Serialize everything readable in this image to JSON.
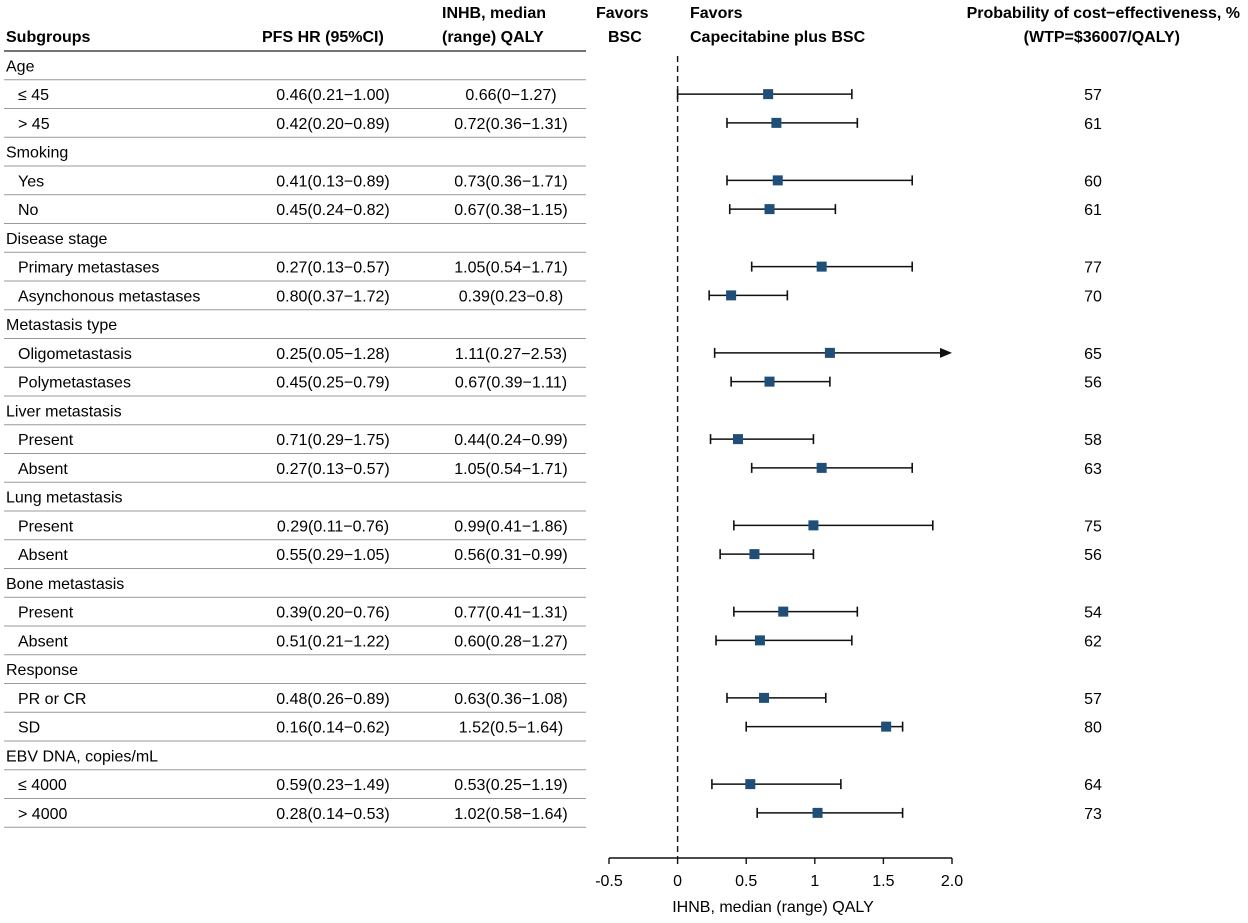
{
  "headers": {
    "subgroups": "Subgroups",
    "pfs_hr": "PFS HR (95%CI)",
    "inhb_line1": "INHB, median",
    "inhb_line2": "(range) QALY",
    "favors_bsc_line1": "Favors",
    "favors_bsc_line2": "BSC",
    "favors_cap_line1": "Favors",
    "favors_cap_line2": "Capecitabine plus BSC",
    "prob_line1": "Probability of cost−effectiveness, %",
    "prob_line2": "(WTP=$36007/QALY)"
  },
  "rows": [
    {
      "kind": "group",
      "label": "Age"
    },
    {
      "kind": "item",
      "label": "≤ 45",
      "hr": "0.46(0.21−1.00)",
      "inhb": "0.66(0−1.27)",
      "prob": "57"
    },
    {
      "kind": "item",
      "label": "> 45",
      "hr": "0.42(0.20−0.89)",
      "inhb": "0.72(0.36−1.31)",
      "prob": "61"
    },
    {
      "kind": "group",
      "label": "Smoking"
    },
    {
      "kind": "item",
      "label": "Yes",
      "hr": "0.41(0.13−0.89)",
      "inhb": "0.73(0.36−1.71)",
      "prob": "60"
    },
    {
      "kind": "item",
      "label": "No",
      "hr": "0.45(0.24−0.82)",
      "inhb": "0.67(0.38−1.15)",
      "prob": "61"
    },
    {
      "kind": "group",
      "label": "Disease stage"
    },
    {
      "kind": "item",
      "label": "Primary metastases",
      "hr": "0.27(0.13−0.57)",
      "inhb": "1.05(0.54−1.71)",
      "prob": "77"
    },
    {
      "kind": "item",
      "label": "Asynchonous metastases",
      "hr": "0.80(0.37−1.72)",
      "inhb": "0.39(0.23−0.8)",
      "prob": "70"
    },
    {
      "kind": "group",
      "label": "Metastasis type"
    },
    {
      "kind": "item",
      "label": "Oligometastasis",
      "hr": "0.25(0.05−1.28)",
      "inhb": "1.11(0.27−2.53)",
      "prob": "65"
    },
    {
      "kind": "item",
      "label": "Polymetastases",
      "hr": "0.45(0.25−0.79)",
      "inhb": "0.67(0.39−1.11)",
      "prob": "56"
    },
    {
      "kind": "group",
      "label": "Liver metastasis"
    },
    {
      "kind": "item",
      "label": "Present",
      "hr": "0.71(0.29−1.75)",
      "inhb": "0.44(0.24−0.99)",
      "prob": "58"
    },
    {
      "kind": "item",
      "label": "Absent",
      "hr": "0.27(0.13−0.57)",
      "inhb": "1.05(0.54−1.71)",
      "prob": "63"
    },
    {
      "kind": "group",
      "label": "Lung metastasis"
    },
    {
      "kind": "item",
      "label": "Present",
      "hr": "0.29(0.11−0.76)",
      "inhb": "0.99(0.41−1.86)",
      "prob": "75"
    },
    {
      "kind": "item",
      "label": "Absent",
      "hr": "0.55(0.29−1.05)",
      "inhb": "0.56(0.31−0.99)",
      "prob": "56"
    },
    {
      "kind": "group",
      "label": "Bone metastasis"
    },
    {
      "kind": "item",
      "label": "Present",
      "hr": "0.39(0.20−0.76)",
      "inhb": "0.77(0.41−1.31)",
      "prob": "54"
    },
    {
      "kind": "item",
      "label": "Absent",
      "hr": "0.51(0.21−1.22)",
      "inhb": "0.60(0.28−1.27)",
      "prob": "62"
    },
    {
      "kind": "group",
      "label": "Response"
    },
    {
      "kind": "item",
      "label": "PR or CR",
      "hr": "0.48(0.26−0.89)",
      "inhb": "0.63(0.36−1.08)",
      "prob": "57"
    },
    {
      "kind": "item",
      "label": "SD",
      "hr": "0.16(0.14−0.62)",
      "inhb": "1.52(0.5−1.64)",
      "prob": "80"
    },
    {
      "kind": "group",
      "label": "EBV DNA, copies/mL"
    },
    {
      "kind": "item",
      "label": "≤ 4000",
      "hr": "0.59(0.23−1.49)",
      "inhb": "0.53(0.25−1.19)",
      "prob": "64"
    },
    {
      "kind": "item",
      "label": "> 4000",
      "hr": "0.28(0.14−0.53)",
      "inhb": "1.02(0.58−1.64)",
      "prob": "73"
    }
  ],
  "chart_data": {
    "type": "forest",
    "xlabel": "IHNB,  median (range) QALY",
    "xlim": [
      -0.5,
      2.0
    ],
    "xticks": [
      -0.5,
      0,
      0.5,
      1,
      1.5,
      2.0
    ],
    "xtick_labels": [
      "-0.5",
      "0",
      "0.5",
      "1",
      "1.5",
      "2.0"
    ],
    "reference_line": 0,
    "point_color": "#1f4e79",
    "points": [
      {
        "label": "≤ 45",
        "median": 0.66,
        "low": 0,
        "high": 1.27
      },
      {
        "label": "> 45",
        "median": 0.72,
        "low": 0.36,
        "high": 1.31
      },
      {
        "label": "Yes",
        "median": 0.73,
        "low": 0.36,
        "high": 1.71
      },
      {
        "label": "No",
        "median": 0.67,
        "low": 0.38,
        "high": 1.15
      },
      {
        "label": "Primary metastases",
        "median": 1.05,
        "low": 0.54,
        "high": 1.71
      },
      {
        "label": "Asynchonous metastases",
        "median": 0.39,
        "low": 0.23,
        "high": 0.8
      },
      {
        "label": "Oligometastasis",
        "median": 1.11,
        "low": 0.27,
        "high": 2.53,
        "arrow": true
      },
      {
        "label": "Polymetastases",
        "median": 0.67,
        "low": 0.39,
        "high": 1.11
      },
      {
        "label": "Liver Present",
        "median": 0.44,
        "low": 0.24,
        "high": 0.99
      },
      {
        "label": "Liver Absent",
        "median": 1.05,
        "low": 0.54,
        "high": 1.71
      },
      {
        "label": "Lung Present",
        "median": 0.99,
        "low": 0.41,
        "high": 1.86
      },
      {
        "label": "Lung Absent",
        "median": 0.56,
        "low": 0.31,
        "high": 0.99
      },
      {
        "label": "Bone Present",
        "median": 0.77,
        "low": 0.41,
        "high": 1.31
      },
      {
        "label": "Bone Absent",
        "median": 0.6,
        "low": 0.28,
        "high": 1.27
      },
      {
        "label": "PR or CR",
        "median": 0.63,
        "low": 0.36,
        "high": 1.08
      },
      {
        "label": "SD",
        "median": 1.52,
        "low": 0.5,
        "high": 1.64
      },
      {
        "label": "≤ 4000",
        "median": 0.53,
        "low": 0.25,
        "high": 1.19
      },
      {
        "label": "> 4000",
        "median": 1.02,
        "low": 0.58,
        "high": 1.64
      }
    ]
  }
}
